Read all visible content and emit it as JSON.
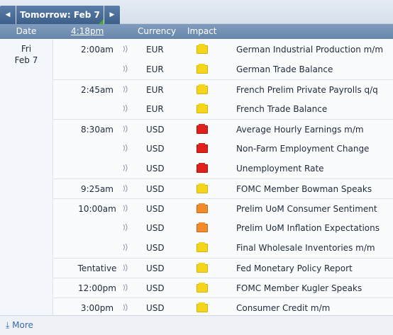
{
  "nav": {
    "prev_icon": "◀",
    "title": "Tomorrow: Feb 7",
    "next_icon": "▶"
  },
  "header": {
    "date": "Date",
    "time": "4:18pm",
    "currency": "Currency",
    "impact": "Impact"
  },
  "day": {
    "weekday": "Fri",
    "date": "Feb 7"
  },
  "events": [
    {
      "time": "2:00am",
      "currency": "EUR",
      "impact": "low",
      "title": "German Industrial Production m/m"
    },
    {
      "time": "",
      "currency": "EUR",
      "impact": "low",
      "title": "German Trade Balance"
    },
    {
      "time": "2:45am",
      "currency": "EUR",
      "impact": "low",
      "title": "French Prelim Private Payrolls q/q"
    },
    {
      "time": "",
      "currency": "EUR",
      "impact": "low",
      "title": "French Trade Balance"
    },
    {
      "time": "8:30am",
      "currency": "USD",
      "impact": "high",
      "title": "Average Hourly Earnings m/m"
    },
    {
      "time": "",
      "currency": "USD",
      "impact": "high",
      "title": "Non-Farm Employment Change"
    },
    {
      "time": "",
      "currency": "USD",
      "impact": "high",
      "title": "Unemployment Rate"
    },
    {
      "time": "9:25am",
      "currency": "USD",
      "impact": "low",
      "title": "FOMC Member Bowman Speaks"
    },
    {
      "time": "10:00am",
      "currency": "USD",
      "impact": "medium",
      "title": "Prelim UoM Consumer Sentiment"
    },
    {
      "time": "",
      "currency": "USD",
      "impact": "medium",
      "title": "Prelim UoM Inflation Expectations"
    },
    {
      "time": "",
      "currency": "USD",
      "impact": "low",
      "title": "Final Wholesale Inventories m/m"
    },
    {
      "time": "Tentative",
      "currency": "USD",
      "impact": "low",
      "title": "Fed Monetary Policy Report"
    },
    {
      "time": "12:00pm",
      "currency": "USD",
      "impact": "low",
      "title": "FOMC Member Kugler Speaks"
    },
    {
      "time": "3:00pm",
      "currency": "USD",
      "impact": "low",
      "title": "Consumer Credit m/m"
    }
  ],
  "footer": {
    "more_label": "More",
    "more_icon": "⤓"
  },
  "colors": {
    "impact_low": "#f4d519",
    "impact_medium": "#f08a2a",
    "impact_high": "#e0201b",
    "header_bg": "#6886ab"
  }
}
